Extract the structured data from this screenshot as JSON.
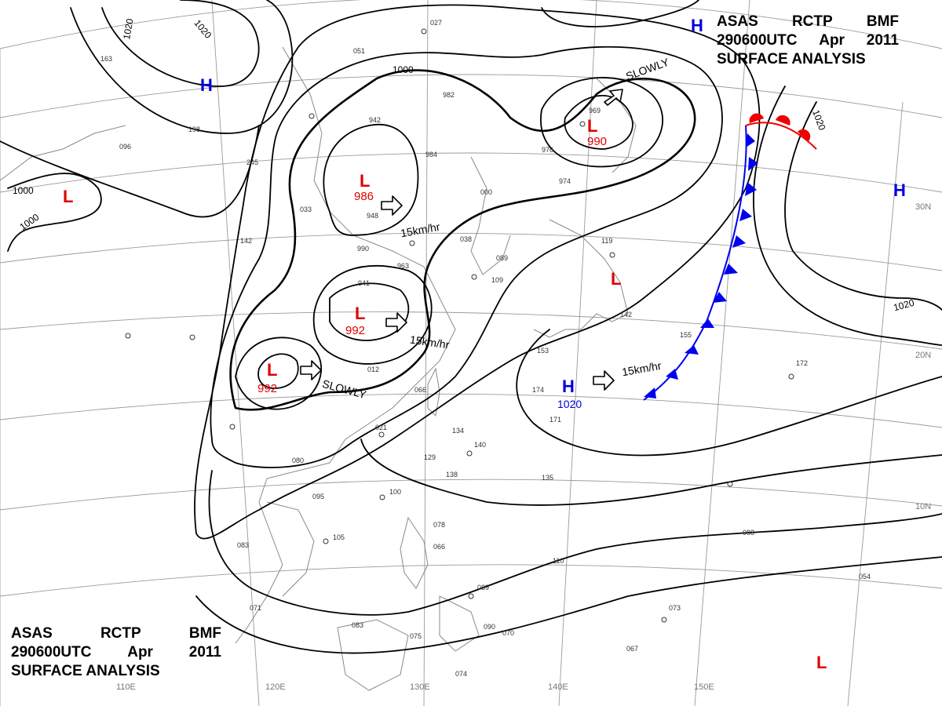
{
  "title": {
    "line1": [
      "ASAS",
      "RCTP",
      "BMF"
    ],
    "line2": [
      "290600UTC",
      "Apr",
      "2011"
    ],
    "line3": "SURFACE ANALYSIS"
  },
  "longitude_labels": [
    "110E",
    "120E",
    "130E",
    "140E",
    "150E"
  ],
  "latitude_labels": [
    "30N",
    "20N",
    "10N"
  ],
  "isobar_labels": [
    "1000",
    "1000",
    "1020",
    "1020",
    "1000",
    "1020",
    "1020"
  ],
  "pressure_systems": {
    "lows": [
      {
        "symbol": "L",
        "pressure": "986"
      },
      {
        "symbol": "L",
        "pressure": "990"
      },
      {
        "symbol": "L",
        "pressure": "992"
      },
      {
        "symbol": "L",
        "pressure": "992"
      },
      {
        "symbol": "L",
        "pressure": ""
      },
      {
        "symbol": "L",
        "pressure": ""
      },
      {
        "symbol": "L",
        "pressure": ""
      }
    ],
    "highs": [
      {
        "symbol": "H",
        "pressure": "1020"
      },
      {
        "symbol": "H",
        "pressure": ""
      },
      {
        "symbol": "H",
        "pressure": ""
      },
      {
        "symbol": "H",
        "pressure": ""
      }
    ]
  },
  "motion_labels": [
    "15km/hr",
    "15km/hr",
    "15km/hr",
    "SLOWLY",
    "SLOWLY"
  ],
  "station_values": [
    "982",
    "942",
    "948",
    "990",
    "963",
    "941",
    "012",
    "066",
    "021",
    "134",
    "140",
    "129",
    "138",
    "100",
    "080",
    "095",
    "105",
    "083",
    "071",
    "083",
    "075",
    "078",
    "066",
    "089",
    "090",
    "070",
    "074",
    "110",
    "135",
    "171",
    "174",
    "153",
    "155",
    "142",
    "119",
    "109",
    "089",
    "038",
    "000",
    "976",
    "974",
    "984",
    "969",
    "027",
    "051",
    "096",
    "163",
    "198",
    "142",
    "033",
    "245",
    "172",
    "088",
    "073",
    "067",
    "054"
  ],
  "colors": {
    "isobar": "#000000",
    "grid": "#9a9a9a",
    "coast": "#8a8a8a",
    "low": "#e00000",
    "high": "#0000dd",
    "cold_front": "#0000ee",
    "warm_front": "#ee0000"
  },
  "icons": [
    "low-pressure-marker",
    "high-pressure-marker",
    "motion-arrow-icon",
    "station-model-icon"
  ]
}
